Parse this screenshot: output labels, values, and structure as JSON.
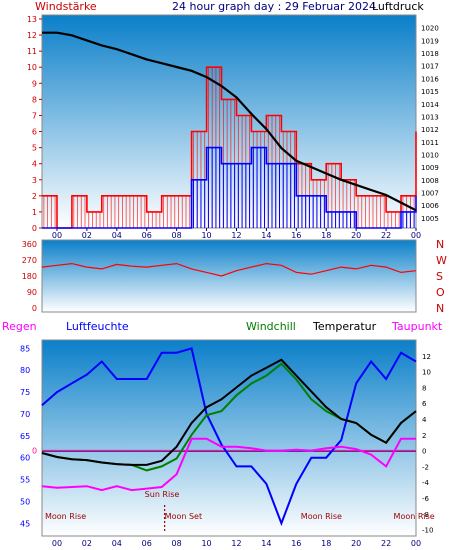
{
  "header": {
    "left_label": "Windstärke",
    "title": "24 hour graph day : 29 Februar 2024",
    "right_label": "Luftdruck"
  },
  "colors": {
    "wind_gust": "#ff0000",
    "wind_avg": "#0000ff",
    "pressure": "#000000",
    "wind_dir": "#ff0000",
    "humidity": "#0000ff",
    "windchill": "#008000",
    "temperature": "#000000",
    "dewpoint": "#ff00ff",
    "zero_line": "#ff1493",
    "bg_top": "#0a7fc9",
    "bg_bottom": "#ffffff",
    "axis_left": "#cc0000",
    "axis_right": "#000000",
    "time_axis": "#000080"
  },
  "chart_data": [
    {
      "id": "wind_pressure",
      "type": "line",
      "x_ticks": [
        "00",
        "02",
        "04",
        "06",
        "08",
        "10",
        "12",
        "14",
        "16",
        "18",
        "20",
        "22",
        "00"
      ],
      "x_range_hours": [
        -1,
        24
      ],
      "y_left": {
        "label": "Windstärke",
        "ticks": [
          0,
          1,
          2,
          3,
          4,
          5,
          6,
          7,
          8,
          9,
          10,
          11,
          12,
          13
        ],
        "ylim": [
          0,
          13
        ]
      },
      "y_right": {
        "label": "Luftdruck",
        "ticks": [
          1005,
          1006,
          1007,
          1008,
          1009,
          1010,
          1011,
          1012,
          1013,
          1014,
          1015,
          1016,
          1017,
          1018,
          1019,
          1020
        ],
        "ylim": [
          1004.2,
          1021
        ]
      },
      "series": [
        {
          "name": "Luftdruck",
          "axis": "right",
          "x": [
            -1,
            0,
            1,
            2,
            3,
            4,
            5,
            6,
            7,
            8,
            9,
            10,
            11,
            12,
            13,
            14,
            15,
            16,
            17,
            18,
            19,
            20,
            21,
            22,
            23,
            24
          ],
          "values": [
            1019.6,
            1019.6,
            1019.4,
            1019.0,
            1018.6,
            1018.3,
            1017.9,
            1017.5,
            1017.2,
            1016.9,
            1016.6,
            1016.1,
            1015.4,
            1014.5,
            1013.2,
            1012.0,
            1010.5,
            1009.5,
            1009.0,
            1008.5,
            1008.0,
            1007.6,
            1007.2,
            1006.8,
            1006.2,
            1005.6
          ]
        },
        {
          "name": "Windstärke Böen",
          "axis": "left",
          "x": [
            -1,
            0,
            1,
            2,
            3,
            4,
            5,
            6,
            7,
            8,
            9,
            10,
            11,
            12,
            13,
            14,
            15,
            16,
            17,
            18,
            19,
            20,
            21,
            22,
            23,
            24
          ],
          "values": [
            2,
            0,
            2,
            1,
            2,
            2,
            2,
            1,
            2,
            2,
            6,
            10,
            8,
            7,
            6,
            7,
            6,
            4,
            3,
            4,
            3,
            2,
            2,
            1,
            2,
            6
          ]
        },
        {
          "name": "Windstärke Mittel",
          "axis": "left",
          "x": [
            -1,
            0,
            1,
            2,
            3,
            4,
            5,
            6,
            7,
            8,
            9,
            10,
            11,
            12,
            13,
            14,
            15,
            16,
            17,
            18,
            19,
            20,
            21,
            22,
            23,
            24
          ],
          "values": [
            0,
            0,
            0,
            0,
            0,
            0,
            0,
            0,
            0,
            0,
            3,
            5,
            4,
            4,
            5,
            4,
            4,
            2,
            2,
            1,
            1,
            0,
            0,
            0,
            1,
            2
          ]
        }
      ]
    },
    {
      "id": "wind_direction",
      "type": "line",
      "x_range_hours": [
        -1,
        24
      ],
      "y_left": {
        "ticks": [
          0,
          90,
          180,
          270,
          360
        ],
        "ylim": [
          0,
          360
        ]
      },
      "y_right_labels": [
        "N",
        "W",
        "S",
        "O",
        "N"
      ],
      "series": [
        {
          "name": "Windrichtung",
          "x": [
            -1,
            0,
            1,
            2,
            3,
            4,
            5,
            6,
            7,
            8,
            9,
            10,
            11,
            12,
            13,
            14,
            15,
            16,
            17,
            18,
            19,
            20,
            21,
            22,
            23,
            24
          ],
          "values": [
            230,
            240,
            250,
            230,
            220,
            245,
            235,
            230,
            240,
            250,
            220,
            200,
            180,
            210,
            230,
            250,
            240,
            200,
            190,
            210,
            230,
            220,
            240,
            230,
            200,
            210
          ]
        }
      ]
    },
    {
      "id": "temperature_humidity",
      "type": "line",
      "legend": [
        "Regen",
        "Luftfeuchte",
        "Windchill",
        "Temperatur",
        "Taupunkt"
      ],
      "x_ticks": [
        "00",
        "02",
        "04",
        "06",
        "08",
        "10",
        "12",
        "14",
        "16",
        "18",
        "20",
        "22",
        "00"
      ],
      "x_range_hours": [
        -1,
        24
      ],
      "y_left": {
        "label": "Luftfeuchte",
        "ticks": [
          45,
          50,
          55,
          60,
          65,
          70,
          75,
          80,
          85
        ],
        "ylim": [
          43,
          86
        ]
      },
      "y_right": {
        "label": "Temperatur",
        "ticks": [
          -10,
          -8,
          -6,
          -4,
          -2,
          0,
          2,
          4,
          6,
          8,
          10,
          12
        ],
        "ylim": [
          -10.3,
          13.5
        ]
      },
      "zero_marker": "0",
      "annotations": [
        {
          "text": "Moon Rise",
          "hour": -0.8,
          "where": "bottom"
        },
        {
          "text": "Sun Rise",
          "hour": 7.2,
          "where": "mid"
        },
        {
          "text": "Moon Set",
          "hour": 7.2,
          "where": "bottom"
        },
        {
          "text": "Moon Rise",
          "hour": 16.3,
          "where": "bottom"
        },
        {
          "text": "Moon Rise",
          "hour": 22.5,
          "where": "bottom"
        }
      ],
      "series": [
        {
          "name": "Luftfeuchte",
          "axis": "left",
          "x": [
            -1,
            0,
            1,
            2,
            3,
            4,
            5,
            6,
            7,
            8,
            9,
            10,
            11,
            12,
            13,
            14,
            15,
            16,
            17,
            18,
            19,
            20,
            21,
            22,
            23,
            24
          ],
          "values": [
            72,
            75,
            77,
            79,
            82,
            78,
            78,
            78,
            84,
            84,
            85,
            70,
            63,
            58,
            58,
            54,
            45,
            54,
            60,
            60,
            64,
            77,
            82,
            78,
            84,
            82
          ]
        },
        {
          "name": "Temperatur",
          "axis": "right",
          "x": [
            -1,
            0,
            1,
            2,
            3,
            4,
            5,
            6,
            7,
            8,
            9,
            10,
            11,
            12,
            13,
            14,
            15,
            16,
            17,
            18,
            19,
            20,
            21,
            22,
            23,
            24
          ],
          "values": [
            -0.3,
            -0.8,
            -1.1,
            -1.2,
            -1.5,
            -1.7,
            -1.8,
            -1.8,
            -1.3,
            0.5,
            3.5,
            5.5,
            6.5,
            8.0,
            9.5,
            10.5,
            11.5,
            9.5,
            7.5,
            5.5,
            4.0,
            3.5,
            2.0,
            1.0,
            3.5,
            5.0
          ]
        },
        {
          "name": "Windchill",
          "axis": "right",
          "x": [
            -1,
            0,
            1,
            2,
            3,
            4,
            5,
            6,
            7,
            8,
            9,
            10,
            11,
            12,
            13,
            14,
            15,
            16,
            17,
            18,
            19,
            20,
            21,
            22,
            23,
            24
          ],
          "values": [
            -0.3,
            -0.8,
            -1.1,
            -1.2,
            -1.5,
            -1.7,
            -1.8,
            -2.5,
            -2.0,
            -1.0,
            2.0,
            4.5,
            5.0,
            7.0,
            8.5,
            9.5,
            11.0,
            9.0,
            6.5,
            5.0,
            4.0,
            3.5,
            2.0,
            1.0,
            3.5,
            5.0
          ]
        },
        {
          "name": "Taupunkt",
          "axis": "right",
          "x": [
            -1,
            0,
            1,
            2,
            3,
            4,
            5,
            6,
            7,
            8,
            9,
            10,
            11,
            12,
            13,
            14,
            15,
            16,
            17,
            18,
            19,
            20,
            21,
            22,
            23,
            24
          ],
          "values": [
            -4.5,
            -4.7,
            -4.6,
            -4.5,
            -5.0,
            -4.5,
            -5.0,
            -4.8,
            -4.6,
            -3.0,
            1.5,
            1.5,
            0.5,
            0.5,
            0.3,
            0.0,
            0.0,
            0.1,
            0.0,
            0.3,
            0.5,
            0.2,
            -0.5,
            -2.0,
            1.5,
            1.5
          ]
        }
      ]
    }
  ]
}
